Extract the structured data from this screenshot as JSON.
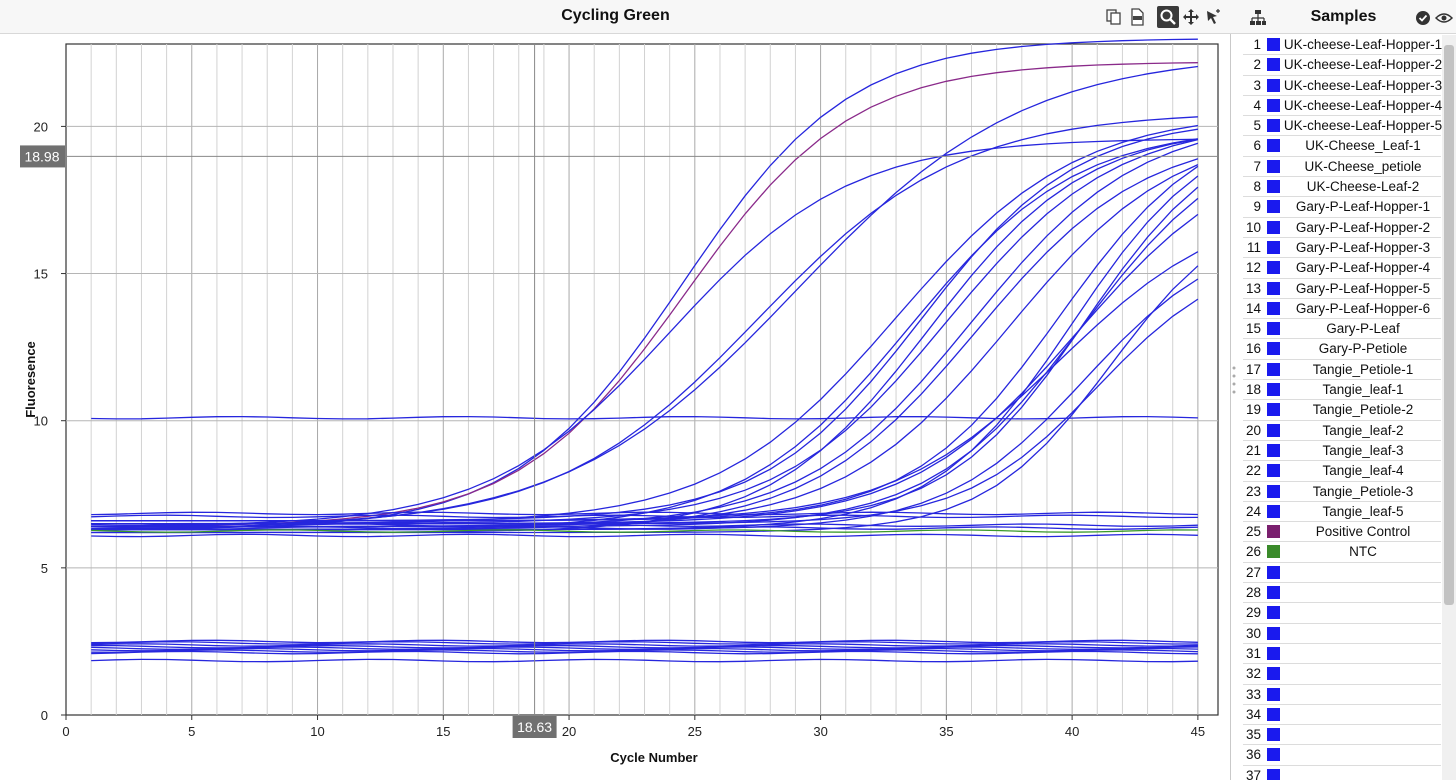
{
  "chart_panel": {
    "title": "Cycling Green",
    "toolbar": [
      {
        "name": "copy-icon",
        "glyph": "⧉"
      },
      {
        "name": "export-csv-icon",
        "glyph": "🗎"
      },
      {
        "name": "zoom-icon",
        "glyph": "🔍"
      },
      {
        "name": "pan-icon",
        "glyph": "✥"
      },
      {
        "name": "select-pointer-icon",
        "glyph": "➚"
      }
    ]
  },
  "samples_panel": {
    "title": "Samples",
    "icons": [
      "tree-icon",
      "check-circle-icon",
      "eye-icon"
    ],
    "samples": [
      {
        "num": "1",
        "name": "UK-cheese-Leaf-Hopper-1",
        "color": "#1a1aee"
      },
      {
        "num": "2",
        "name": "UK-cheese-Leaf-Hopper-2",
        "color": "#1a1aee"
      },
      {
        "num": "3",
        "name": "UK-cheese-Leaf-Hopper-3",
        "color": "#1a1aee"
      },
      {
        "num": "4",
        "name": "UK-cheese-Leaf-Hopper-4",
        "color": "#1a1aee"
      },
      {
        "num": "5",
        "name": "UK-cheese-Leaf-Hopper-5",
        "color": "#1a1aee"
      },
      {
        "num": "6",
        "name": "UK-Cheese_Leaf-1",
        "color": "#1a1aee"
      },
      {
        "num": "7",
        "name": "UK-Cheese_petiole",
        "color": "#1a1aee"
      },
      {
        "num": "8",
        "name": "UK-Cheese-Leaf-2",
        "color": "#1a1aee"
      },
      {
        "num": "9",
        "name": "Gary-P-Leaf-Hopper-1",
        "color": "#1a1aee"
      },
      {
        "num": "10",
        "name": "Gary-P-Leaf-Hopper-2",
        "color": "#1a1aee"
      },
      {
        "num": "11",
        "name": "Gary-P-Leaf-Hopper-3",
        "color": "#1a1aee"
      },
      {
        "num": "12",
        "name": "Gary-P-Leaf-Hopper-4",
        "color": "#1a1aee"
      },
      {
        "num": "13",
        "name": "Gary-P-Leaf-Hopper-5",
        "color": "#1a1aee"
      },
      {
        "num": "14",
        "name": "Gary-P-Leaf-Hopper-6",
        "color": "#1a1aee"
      },
      {
        "num": "15",
        "name": "Gary-P-Leaf",
        "color": "#1a1aee"
      },
      {
        "num": "16",
        "name": "Gary-P-Petiole",
        "color": "#1a1aee"
      },
      {
        "num": "17",
        "name": "Tangie_Petiole-1",
        "color": "#1a1aee"
      },
      {
        "num": "18",
        "name": "Tangie_leaf-1",
        "color": "#1a1aee"
      },
      {
        "num": "19",
        "name": "Tangie_Petiole-2",
        "color": "#1a1aee"
      },
      {
        "num": "20",
        "name": "Tangie_leaf-2",
        "color": "#1a1aee"
      },
      {
        "num": "21",
        "name": "Tangie_leaf-3",
        "color": "#1a1aee"
      },
      {
        "num": "22",
        "name": "Tangie_leaf-4",
        "color": "#1a1aee"
      },
      {
        "num": "23",
        "name": "Tangie_Petiole-3",
        "color": "#1a1aee"
      },
      {
        "num": "24",
        "name": "Tangie_leaf-5",
        "color": "#1a1aee"
      },
      {
        "num": "25",
        "name": "Positive Control",
        "color": "#7a1f6e"
      },
      {
        "num": "26",
        "name": "NTC",
        "color": "#3a8a2a"
      },
      {
        "num": "27",
        "name": "",
        "color": "#1a1aee"
      },
      {
        "num": "28",
        "name": "",
        "color": "#1a1aee"
      },
      {
        "num": "29",
        "name": "",
        "color": "#1a1aee"
      },
      {
        "num": "30",
        "name": "",
        "color": "#1a1aee"
      },
      {
        "num": "31",
        "name": "",
        "color": "#1a1aee"
      },
      {
        "num": "32",
        "name": "",
        "color": "#1a1aee"
      },
      {
        "num": "33",
        "name": "",
        "color": "#1a1aee"
      },
      {
        "num": "34",
        "name": "",
        "color": "#1a1aee"
      },
      {
        "num": "35",
        "name": "",
        "color": "#1a1aee"
      },
      {
        "num": "36",
        "name": "",
        "color": "#1a1aee"
      },
      {
        "num": "37",
        "name": "",
        "color": "#1a1aee"
      }
    ]
  },
  "chart_data": {
    "type": "line",
    "xlabel": "Cycle Number",
    "ylabel": "Fluoresence",
    "xlim": [
      0,
      45.8
    ],
    "ylim": [
      0,
      22.8
    ],
    "xticks": [
      0,
      5,
      10,
      15,
      20,
      25,
      30,
      35,
      40,
      45
    ],
    "yticks": [
      0,
      5,
      10,
      15,
      20
    ],
    "grid": true,
    "crosshair": {
      "x": 18.63,
      "y": 18.98,
      "x_label": "18.63",
      "y_label": "18.98"
    },
    "series_colors": {
      "sample": "#2626dd",
      "positive_control": "#8a2a8a",
      "ntc": "#3a9a2a"
    },
    "series": [
      {
        "type": "sigmoid",
        "base": 6.3,
        "plateau": 23.0,
        "mid": 24.5,
        "k": 0.3,
        "color": "#2626dd"
      },
      {
        "type": "sigmoid",
        "base": 6.4,
        "plateau": 22.2,
        "mid": 24.6,
        "k": 0.3,
        "color": "#8a2a8a"
      },
      {
        "type": "sigmoid",
        "base": 6.4,
        "plateau": 19.6,
        "mid": 24.0,
        "k": 0.28,
        "color": "#2626dd"
      },
      {
        "type": "sigmoid",
        "base": 6.3,
        "plateau": 22.5,
        "mid": 29.0,
        "k": 0.22,
        "color": "#2626dd"
      },
      {
        "type": "sigmoid",
        "base": 6.4,
        "plateau": 20.5,
        "mid": 27.5,
        "k": 0.25,
        "color": "#2626dd"
      },
      {
        "type": "sigmoid",
        "base": 6.5,
        "plateau": 20.5,
        "mid": 33.0,
        "k": 0.28,
        "color": "#2626dd"
      },
      {
        "type": "sigmoid",
        "base": 6.3,
        "plateau": 20.0,
        "mid": 33.5,
        "k": 0.3,
        "color": "#2626dd"
      },
      {
        "type": "sigmoid",
        "base": 6.6,
        "plateau": 20.3,
        "mid": 34.0,
        "k": 0.32,
        "color": "#2626dd"
      },
      {
        "type": "sigmoid",
        "base": 6.2,
        "plateau": 20.0,
        "mid": 34.3,
        "k": 0.32,
        "color": "#2626dd"
      },
      {
        "type": "sigmoid",
        "base": 6.5,
        "plateau": 20.2,
        "mid": 35.0,
        "k": 0.3,
        "color": "#2626dd"
      },
      {
        "type": "sigmoid",
        "base": 6.4,
        "plateau": 20.3,
        "mid": 36.0,
        "k": 0.3,
        "color": "#2626dd"
      },
      {
        "type": "sigmoid",
        "base": 6.3,
        "plateau": 19.8,
        "mid": 36.2,
        "k": 0.3,
        "color": "#2626dd"
      },
      {
        "type": "sigmoid",
        "base": 6.4,
        "plateau": 20.0,
        "mid": 37.5,
        "k": 0.3,
        "color": "#2626dd"
      },
      {
        "type": "sigmoid",
        "base": 6.6,
        "plateau": 20.5,
        "mid": 39.5,
        "k": 0.34,
        "color": "#2626dd"
      },
      {
        "type": "sigmoid",
        "base": 6.3,
        "plateau": 20.3,
        "mid": 40.0,
        "k": 0.36,
        "color": "#2626dd"
      },
      {
        "type": "sigmoid",
        "base": 6.5,
        "plateau": 20.2,
        "mid": 40.5,
        "k": 0.36,
        "color": "#2626dd"
      },
      {
        "type": "sigmoid",
        "base": 6.4,
        "plateau": 20.0,
        "mid": 40.4,
        "k": 0.33,
        "color": "#2626dd"
      },
      {
        "type": "sigmoid",
        "base": 6.5,
        "plateau": 19.5,
        "mid": 40.2,
        "k": 0.3,
        "color": "#2626dd"
      },
      {
        "type": "sigmoid",
        "base": 6.6,
        "plateau": 17.5,
        "mid": 39.5,
        "k": 0.3,
        "color": "#2626dd"
      },
      {
        "type": "sigmoid",
        "base": 6.2,
        "plateau": 17.5,
        "mid": 41.5,
        "k": 0.4,
        "color": "#2626dd"
      },
      {
        "type": "sigmoid",
        "base": 6.3,
        "plateau": 16.5,
        "mid": 40.5,
        "k": 0.36,
        "color": "#2626dd"
      },
      {
        "type": "sigmoid",
        "base": 6.5,
        "plateau": 15.8,
        "mid": 41.0,
        "k": 0.38,
        "color": "#2626dd"
      },
      {
        "type": "flat",
        "level": 10.1,
        "color": "#2626dd"
      },
      {
        "type": "flat",
        "level": 6.85,
        "color": "#2626dd"
      },
      {
        "type": "flat",
        "level": 6.75,
        "color": "#2626dd"
      },
      {
        "type": "flat",
        "level": 6.45,
        "color": "#2626dd"
      },
      {
        "type": "flat",
        "level": 6.35,
        "color": "#2626dd"
      },
      {
        "type": "flat",
        "level": 6.25,
        "color": "#3a9a2a"
      },
      {
        "type": "flat",
        "level": 6.1,
        "color": "#2626dd"
      },
      {
        "type": "flat",
        "level": 2.5,
        "color": "#2626dd"
      },
      {
        "type": "flat",
        "level": 2.45,
        "color": "#2626dd"
      },
      {
        "type": "flat",
        "level": 2.38,
        "color": "#2626dd"
      },
      {
        "type": "flat",
        "level": 2.32,
        "color": "#2626dd"
      },
      {
        "type": "flat",
        "level": 2.27,
        "color": "#2626dd"
      },
      {
        "type": "flat",
        "level": 2.22,
        "color": "#2626dd"
      },
      {
        "type": "flat",
        "level": 2.17,
        "color": "#2626dd"
      },
      {
        "type": "flat",
        "level": 2.12,
        "color": "#2626dd"
      },
      {
        "type": "flat",
        "level": 1.85,
        "color": "#2626dd"
      }
    ]
  }
}
